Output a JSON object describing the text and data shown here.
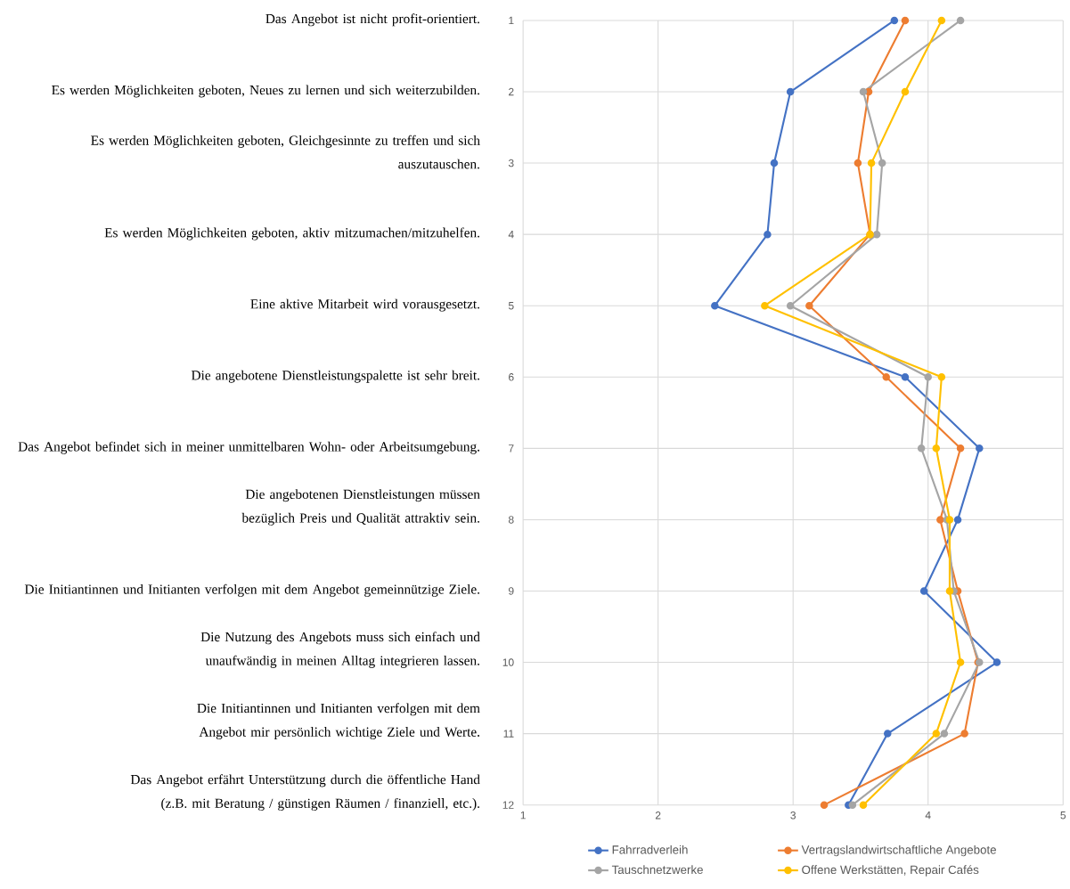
{
  "chart_data": {
    "type": "line",
    "orientation": "horizontal",
    "x": [
      1,
      2,
      3,
      4,
      5,
      6,
      7,
      8,
      9,
      10,
      11,
      12
    ],
    "series": [
      {
        "name": "Fahrradverleih",
        "color": "#4472c4",
        "values": [
          3.75,
          2.98,
          2.86,
          2.81,
          2.42,
          3.83,
          4.38,
          4.22,
          3.97,
          4.51,
          3.7,
          3.41
        ]
      },
      {
        "name": "Vertragslandwirtschaftliche Angebote",
        "color": "#ed7d31",
        "values": [
          3.83,
          3.56,
          3.48,
          3.57,
          3.12,
          3.69,
          4.24,
          4.09,
          4.22,
          4.37,
          4.27,
          3.23
        ]
      },
      {
        "name": "Tauschnetzwerke",
        "color": "#a5a5a5",
        "values": [
          4.24,
          3.52,
          3.66,
          3.62,
          2.98,
          4.0,
          3.95,
          4.14,
          4.19,
          4.38,
          4.12,
          3.44
        ]
      },
      {
        "name": "Offene Werkstätten, Repair Cafés",
        "color": "#ffc000",
        "values": [
          4.1,
          3.83,
          3.58,
          3.57,
          2.79,
          4.1,
          4.06,
          4.16,
          4.16,
          4.24,
          4.06,
          3.52
        ]
      }
    ],
    "xlim": [
      1,
      5
    ],
    "xticks": [
      1,
      2,
      3,
      4,
      5
    ],
    "ylim": [
      12,
      1
    ],
    "yticks": [
      1,
      2,
      3,
      4,
      5,
      6,
      7,
      8,
      9,
      10,
      11,
      12
    ],
    "grid": true,
    "legend": "bottom",
    "marker": "circle",
    "line_style": "solid",
    "annotations": [
      "Das Angebot ist nicht profit-orientiert.",
      "Es werden Möglichkeiten geboten, Neues zu lernen und sich weiterzubilden.",
      "Es werden Möglichkeiten geboten, Gleichgesinnte zu treffen und sich auszutauschen.",
      "Es werden Möglichkeiten geboten, aktiv mitzumachen/mitzuhelfen.",
      "Eine aktive Mitarbeit wird vorausgesetzt.",
      "Die angebotene Dienstleistungspalette ist sehr breit.",
      "Das Angebot befindet sich in meiner unmittelbaren Wohn- oder Arbeitsumgebung.",
      "Die angebotenen Dienstleistungen müssen bezüglich Preis und Qualität attraktiv sein.",
      "Die Initiantinnen und Initianten verfolgen mit dem Angebot gemeinnützige Ziele.",
      "Die Nutzung des Angebots muss sich einfach und unaufwändig in meinen Alltag integrieren lassen.",
      "Die Initiantinnen und Initianten verfolgen mit dem Angebot mir persönlich wichtige Ziele und Werte.",
      "Das Angebot erfährt Unterstützung durch die öffentliche Hand (z.B. mit Beratung / günstigen Räumen / finanziell, etc.)."
    ]
  }
}
